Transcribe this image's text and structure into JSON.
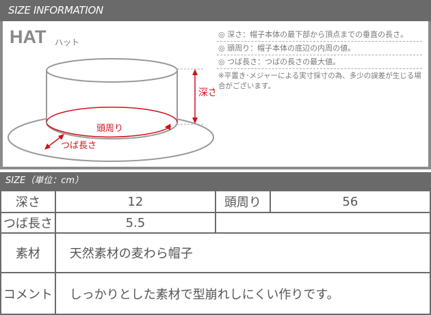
{
  "header": {
    "title": "SIZE INFORMATION"
  },
  "diagram": {
    "title": "HAT",
    "subtitle": "ハット",
    "labels": {
      "depth": "深さ",
      "head": "頭周り",
      "brim": "つば長さ"
    },
    "accent": "#d0101a"
  },
  "notes": [
    {
      "key": "◎ 深さ：",
      "text": "帽子本体の最下部から頂点までの垂直の長さ。"
    },
    {
      "key": "◎ 頭周り：",
      "text": "帽子本体の底辺の内周の値。"
    },
    {
      "key": "◎ つば長さ：",
      "text": "つばの長さの最大値。"
    }
  ],
  "disclaimer": "※平置き･メジャーによる実寸採寸の為、多少の誤差が生じる場合がございます。",
  "size_header": "SIZE（単位：cm）",
  "table": {
    "depth_label": "深さ",
    "depth": "12",
    "head_label": "頭周り",
    "head": "56",
    "brim_label": "つば長さ",
    "brim": "5.5",
    "material_label": "素材",
    "material": "天然素材の麦わら帽子",
    "comment_label": "コメント",
    "comment": "しっかりとした素材で型崩れしにくい作りです。"
  }
}
